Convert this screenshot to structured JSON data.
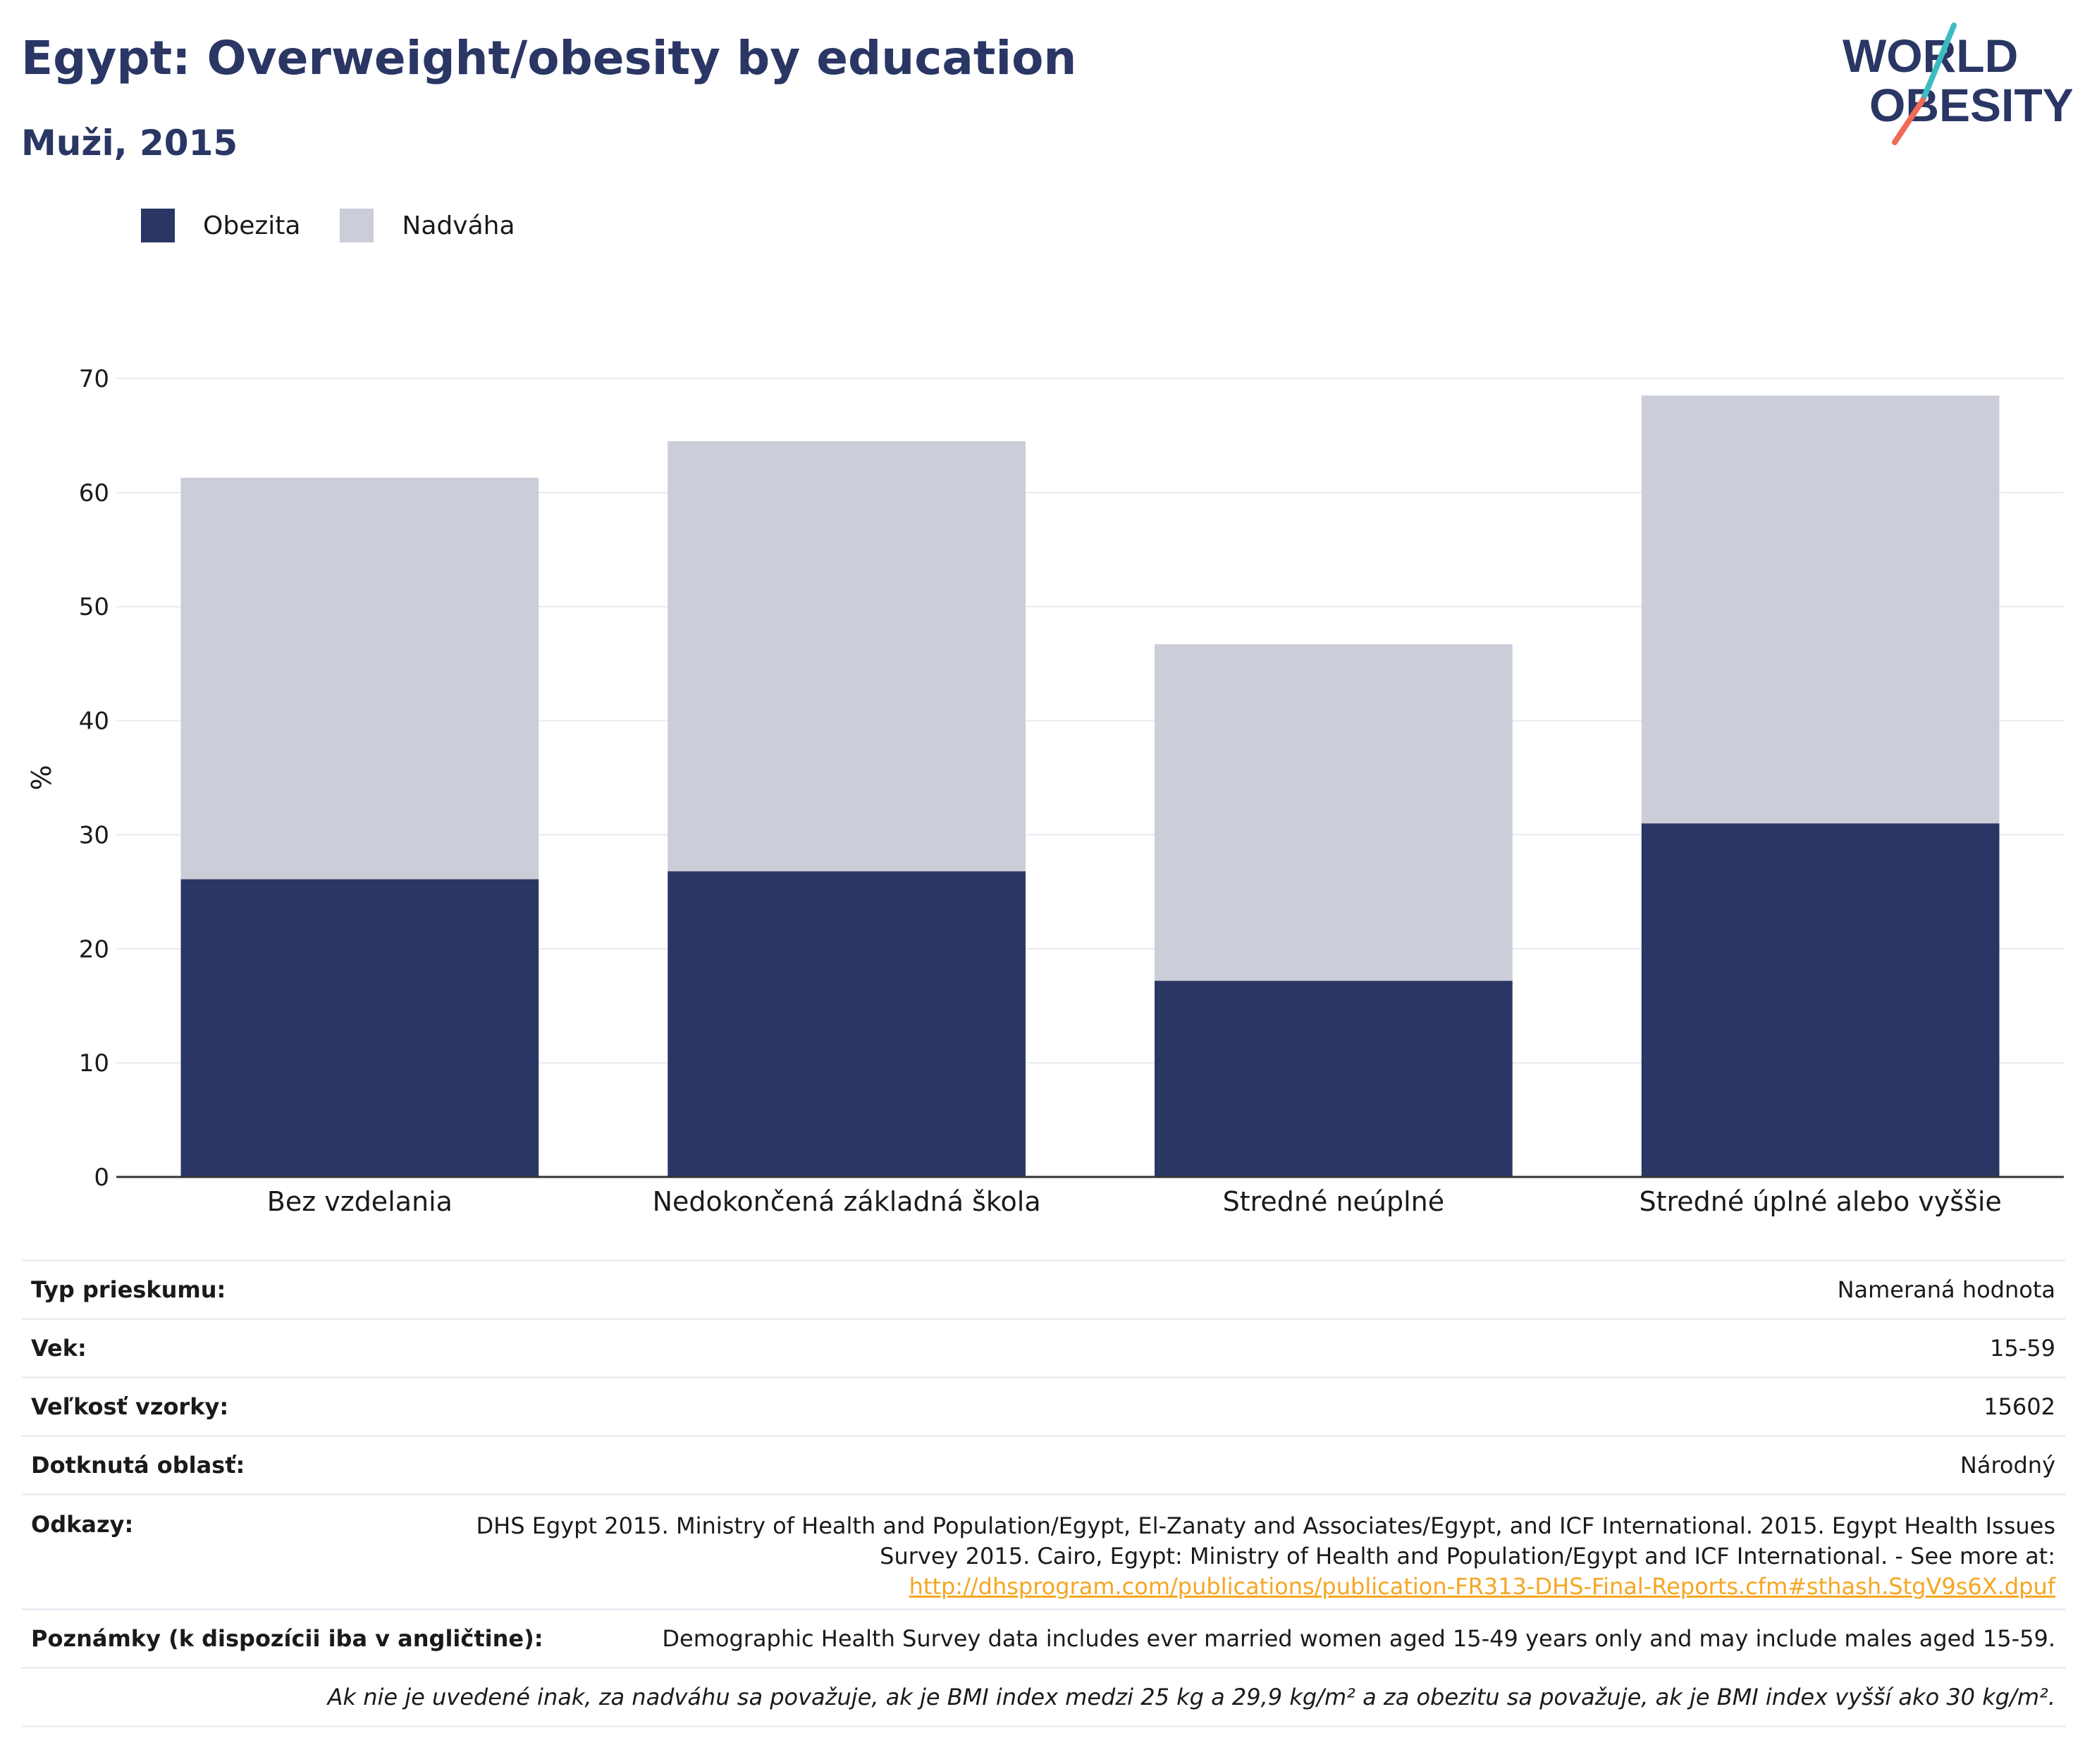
{
  "header": {
    "title": "Egypt: Overweight/obesity by education",
    "subtitle": "Muži, 2015"
  },
  "logo": {
    "line1": "WORLD",
    "line2": "OBESITY"
  },
  "colors": {
    "obesity": "#2a3664",
    "overweight": "#cbcdd9",
    "title": "#2a3664",
    "link": "#f5a623"
  },
  "legend": [
    {
      "label": "Obezita",
      "color": "#2a3664"
    },
    {
      "label": "Nadváha",
      "color": "#cbcdd9"
    }
  ],
  "chart_data": {
    "type": "bar",
    "stacked": true,
    "categories": [
      "Bez vzdelania",
      "Nedokončená základná škola",
      "Stredné neúplné",
      "Stredné úplné alebo vyššie"
    ],
    "series": [
      {
        "name": "Obezita",
        "values": [
          26.1,
          26.8,
          17.2,
          31.0
        ]
      },
      {
        "name": "Nadváha",
        "values": [
          35.2,
          37.7,
          29.5,
          37.5
        ]
      }
    ],
    "ylabel": "%",
    "ylim": [
      0,
      70
    ],
    "yticks": [
      0,
      10,
      20,
      30,
      40,
      50,
      60,
      70
    ],
    "grid": true,
    "legend_position": "top-left"
  },
  "info": {
    "survey_type_label": "Typ prieskumu:",
    "survey_type_value": "Nameraná hodnota",
    "age_label": "Vek:",
    "age_value": "15-59",
    "sample_label": "Veľkosť vzorky:",
    "sample_value": "15602",
    "area_label": "Dotknutá oblasť:",
    "area_value": "Národný",
    "refs_label": "Odkazy:",
    "refs_text": "DHS Egypt 2015. Ministry of Health and Population/Egypt, El-Zanaty and Associates/Egypt, and ICF International. 2015. Egypt Health Issues Survey 2015. Cairo, Egypt: Ministry of Health and Population/Egypt and ICF International. - See more at:",
    "refs_link": "http://dhsprogram.com/publications/publication-FR313-DHS-Final-Reports.cfm#sthash.StgV9s6X.dpuf",
    "notes_label": "Poznámky (k dispozícii iba v angličtine):",
    "notes_value": "Demographic Health Survey data includes ever married women aged 15-49 years only and may include males aged 15-59.",
    "footnote": "Ak nie je uvedené inak, za nadváhu sa považuje, ak je BMI index medzi 25 kg a 29,9 kg/m² a za obezitu sa považuje, ak je BMI index vyšší ako 30 kg/m²."
  }
}
